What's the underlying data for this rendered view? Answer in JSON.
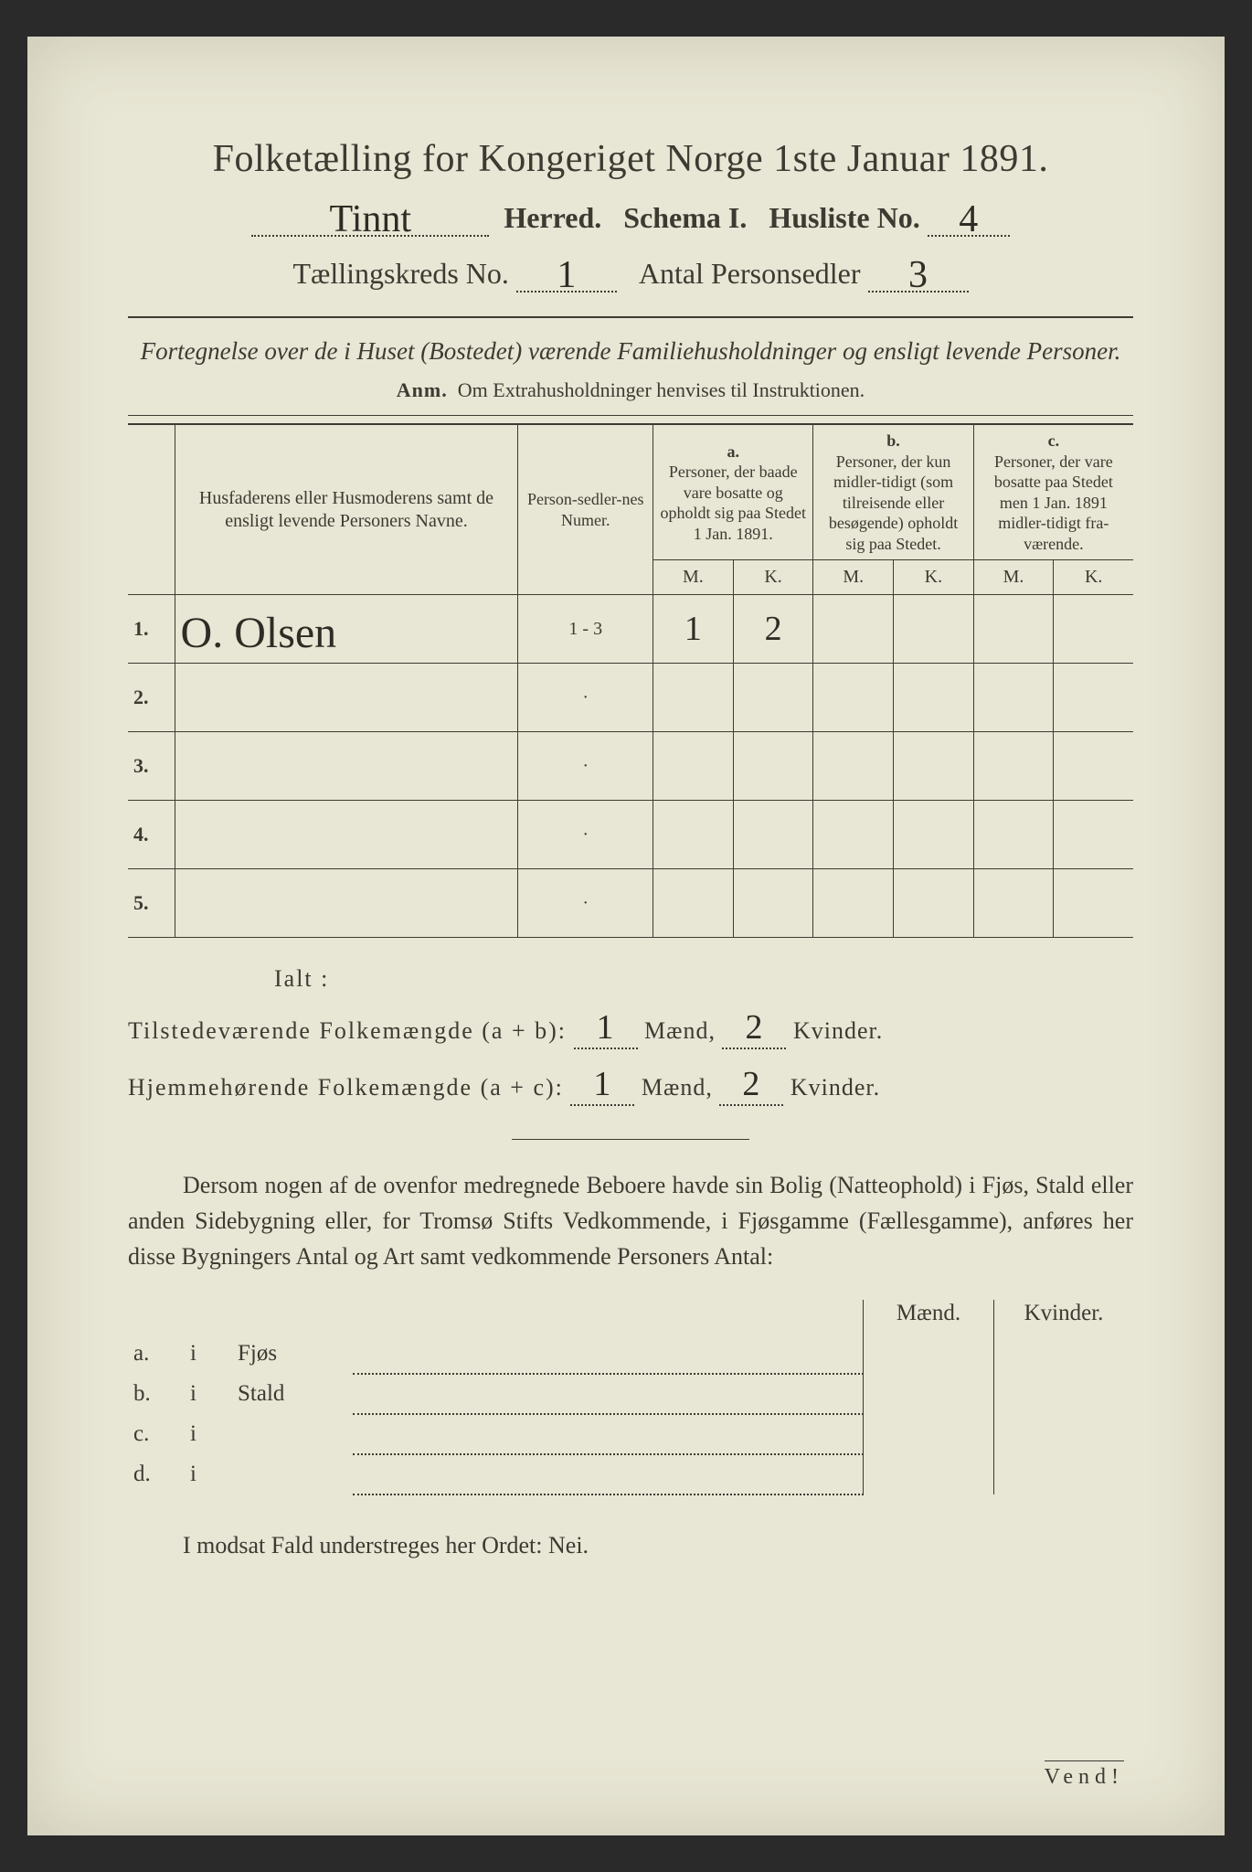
{
  "title": "Folketælling for Kongeriget Norge 1ste Januar 1891.",
  "header": {
    "herred_value": "Tinnt",
    "herred_label": "Herred.",
    "schema_label": "Schema I.",
    "husliste_label": "Husliste No.",
    "husliste_value": "4",
    "kreds_label": "Tællingskreds No.",
    "kreds_value": "1",
    "antal_label": "Antal Personsedler",
    "antal_value": "3"
  },
  "subtitle": "Fortegnelse over de i Huset (Bostedet) værende Familiehusholdninger og ensligt levende Personer.",
  "anm": {
    "label": "Anm.",
    "text": "Om Extrahusholdninger henvises til Instruktionen."
  },
  "table": {
    "col_name": "Husfaderens eller Husmoderens samt de ensligt levende Personers Navne.",
    "col_sedler": "Person-sedler-nes Numer.",
    "group_a_label": "a.",
    "group_a_text": "Personer, der baade vare bosatte og opholdt sig paa Stedet 1 Jan. 1891.",
    "group_b_label": "b.",
    "group_b_text": "Personer, der kun midler-tidigt (som tilreisende eller besøgende) opholdt sig paa Stedet.",
    "group_c_label": "c.",
    "group_c_text": "Personer, der vare bosatte paa Stedet men 1 Jan. 1891 midler-tidigt fra-værende.",
    "m": "M.",
    "k": "K.",
    "rows": [
      {
        "n": "1.",
        "name": "O. Olsen",
        "sedler": "1 - 3",
        "a_m": "1",
        "a_k": "2",
        "b_m": "",
        "b_k": "",
        "c_m": "",
        "c_k": ""
      },
      {
        "n": "2.",
        "name": "",
        "sedler": "·",
        "a_m": "",
        "a_k": "",
        "b_m": "",
        "b_k": "",
        "c_m": "",
        "c_k": ""
      },
      {
        "n": "3.",
        "name": "",
        "sedler": "·",
        "a_m": "",
        "a_k": "",
        "b_m": "",
        "b_k": "",
        "c_m": "",
        "c_k": ""
      },
      {
        "n": "4.",
        "name": "",
        "sedler": "·",
        "a_m": "",
        "a_k": "",
        "b_m": "",
        "b_k": "",
        "c_m": "",
        "c_k": ""
      },
      {
        "n": "5.",
        "name": "",
        "sedler": "·",
        "a_m": "",
        "a_k": "",
        "b_m": "",
        "b_k": "",
        "c_m": "",
        "c_k": ""
      }
    ]
  },
  "ialt": {
    "heading": "Ialt :",
    "row1_label": "Tilstedeværende Folkemængde (a + b):",
    "row2_label": "Hjemmehørende Folkemængde (a + c):",
    "maend": "Mænd,",
    "kvinder": "Kvinder.",
    "r1_m": "1",
    "r1_k": "2",
    "r2_m": "1",
    "r2_k": "2"
  },
  "para": "Dersom nogen af de ovenfor medregnede Beboere havde sin Bolig (Natteophold) i Fjøs, Stald eller anden Sidebygning eller, for Tromsø Stifts Vedkommende, i Fjøsgamme (Fællesgamme), anføres her disse Bygningers Antal og Art samt vedkommende Personers Antal:",
  "bld": {
    "maend": "Mænd.",
    "kvinder": "Kvinder.",
    "rows": [
      {
        "lab": "a.",
        "i": "i",
        "what": "Fjøs"
      },
      {
        "lab": "b.",
        "i": "i",
        "what": "Stald"
      },
      {
        "lab": "c.",
        "i": "i",
        "what": ""
      },
      {
        "lab": "d.",
        "i": "i",
        "what": ""
      }
    ]
  },
  "nei": "I modsat Fald understreges her Ordet: Nei.",
  "vend": "Vend!"
}
